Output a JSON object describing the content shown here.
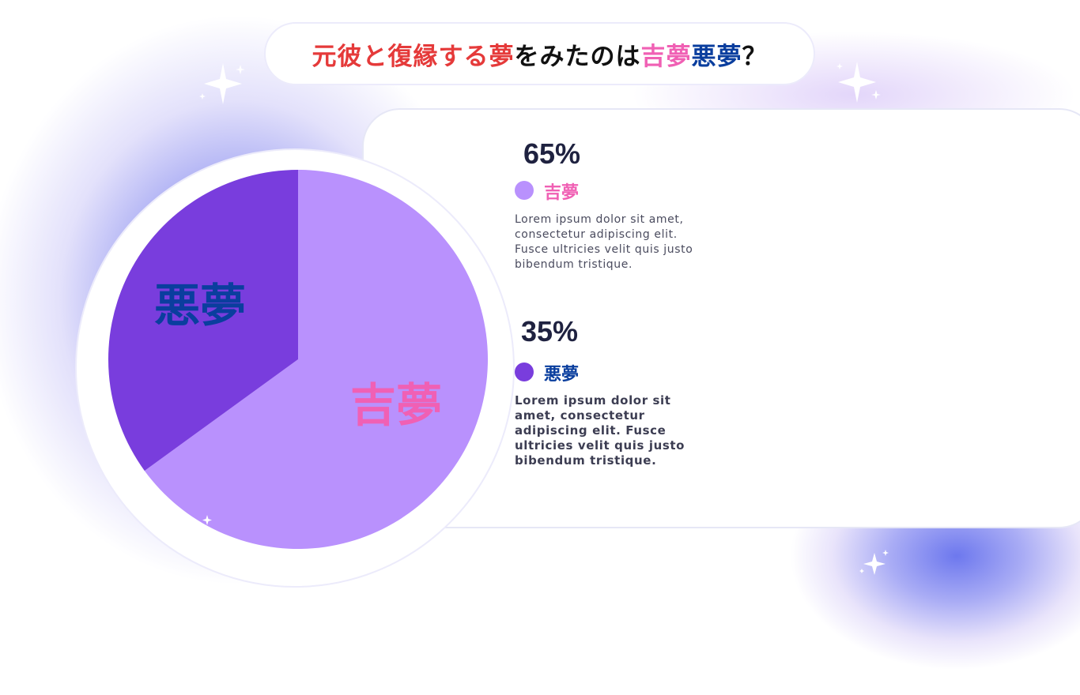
{
  "title": {
    "part1": "元彼と復縁する夢",
    "part2": "をみたのは",
    "part3": "吉夢",
    "part4": "悪夢",
    "part5": "？"
  },
  "stats": [
    {
      "percent": "65%",
      "label": "吉夢",
      "description": "Lorem ipsum dolor sit amet, consectetur adipiscing elit. Fusce ultricies velit quis justo bibendum tristique."
    },
    {
      "percent": "35%",
      "label": "悪夢",
      "description": "Lorem ipsum dolor sit amet, consectetur adipiscing elit. Fusce ultricies velit quis justo bibendum tristique."
    }
  ],
  "colors": {
    "good_dream": "#b991fd",
    "bad_dream": "#793ddd",
    "good_label": "#f060b4",
    "bad_label": "#0a3e9e",
    "title_red": "#e53a3a"
  },
  "chart_data": {
    "type": "pie",
    "slices": [
      {
        "label": "吉夢",
        "value": 65,
        "color": "#b991fd",
        "label_color": "#f060b4"
      },
      {
        "label": "悪夢",
        "value": 35,
        "color": "#793ddd",
        "label_color": "#0a3e9e"
      }
    ]
  }
}
